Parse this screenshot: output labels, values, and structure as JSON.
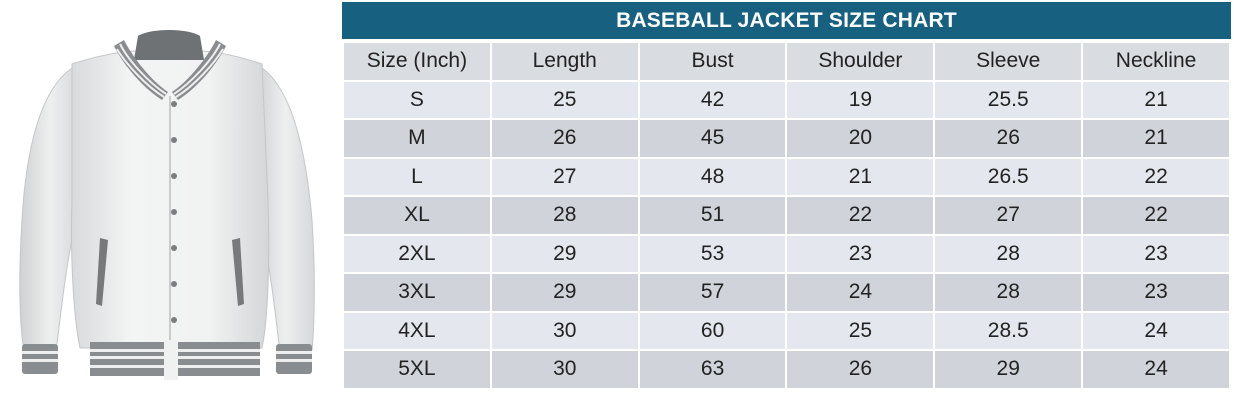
{
  "chart": {
    "title": "BASEBALL JACKET SIZE CHART",
    "columns": [
      "Size (Inch)",
      "Length",
      "Bust",
      "Shoulder",
      "Sleeve",
      "Neckline"
    ],
    "rows": [
      [
        "S",
        "25",
        "42",
        "19",
        "25.5",
        "21"
      ],
      [
        "M",
        "26",
        "45",
        "20",
        "26",
        "21"
      ],
      [
        "L",
        "27",
        "48",
        "21",
        "26.5",
        "22"
      ],
      [
        "XL",
        "28",
        "51",
        "22",
        "27",
        "22"
      ],
      [
        "2XL",
        "29",
        "53",
        "23",
        "28",
        "23"
      ],
      [
        "3XL",
        "29",
        "57",
        "24",
        "28",
        "23"
      ],
      [
        "4XL",
        "30",
        "60",
        "25",
        "28.5",
        "24"
      ],
      [
        "5XL",
        "30",
        "63",
        "26",
        "29",
        "24"
      ]
    ]
  },
  "colors": {
    "title_bar": "#176080",
    "header_row": "#d9dce1",
    "row_light": "#e4e8ee",
    "row_dark": "#d0d4da"
  },
  "image": {
    "subject_icon": "baseball-jacket-icon"
  }
}
